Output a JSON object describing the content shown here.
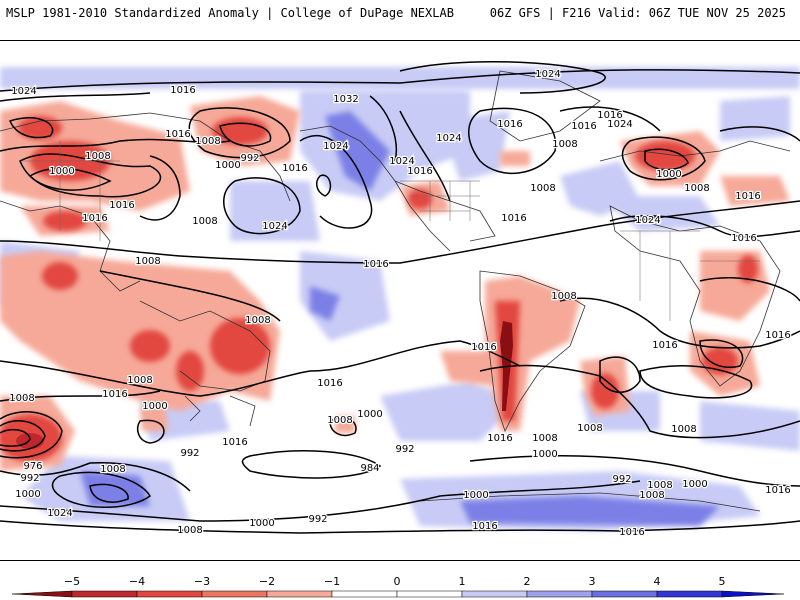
{
  "header": {
    "title_left": "MSLP 1981-2010 Standardized Anomaly | College of DuPage NEXLAB",
    "title_right": "06Z GFS | F216 Valid: 06Z TUE NOV 25 2025"
  },
  "map": {
    "projection": "global cylindrical",
    "field": "MSLP standardized anomaly",
    "contour_units": "hPa",
    "contour_labels": [
      {
        "id": "l1",
        "text": "1024"
      },
      {
        "id": "l2",
        "text": "1016"
      },
      {
        "id": "l3",
        "text": "1016"
      },
      {
        "id": "l4",
        "text": "1008"
      },
      {
        "id": "l5",
        "text": "992"
      },
      {
        "id": "l6",
        "text": "1000"
      },
      {
        "id": "l7",
        "text": "1008"
      },
      {
        "id": "l8",
        "text": "1000"
      },
      {
        "id": "l9",
        "text": "1016"
      },
      {
        "id": "l10",
        "text": "1016"
      },
      {
        "id": "l11",
        "text": "1016"
      },
      {
        "id": "l12",
        "text": "1008"
      },
      {
        "id": "l13",
        "text": "1024"
      },
      {
        "id": "l14",
        "text": "1008"
      },
      {
        "id": "l15",
        "text": "1032"
      },
      {
        "id": "l16",
        "text": "1024"
      },
      {
        "id": "l17",
        "text": "1024"
      },
      {
        "id": "l18",
        "text": "1016"
      },
      {
        "id": "l19",
        "text": "1024"
      },
      {
        "id": "l20",
        "text": "1016"
      },
      {
        "id": "l21",
        "text": "1008"
      },
      {
        "id": "l22",
        "text": "1016"
      },
      {
        "id": "l23",
        "text": "1016"
      },
      {
        "id": "l24",
        "text": "1024"
      },
      {
        "id": "l25",
        "text": "1008"
      },
      {
        "id": "l26",
        "text": "1016"
      },
      {
        "id": "l27",
        "text": "1024"
      },
      {
        "id": "l28",
        "text": "1016"
      },
      {
        "id": "l29",
        "text": "1000"
      },
      {
        "id": "l30",
        "text": "1008"
      },
      {
        "id": "l31",
        "text": "1016"
      },
      {
        "id": "l32",
        "text": "1024"
      },
      {
        "id": "l33",
        "text": "1016"
      },
      {
        "id": "l34",
        "text": "1008"
      },
      {
        "id": "l35",
        "text": "1016"
      },
      {
        "id": "l36",
        "text": "1016"
      },
      {
        "id": "l37",
        "text": "1008"
      },
      {
        "id": "l38",
        "text": "1008"
      },
      {
        "id": "l39",
        "text": "1016"
      },
      {
        "id": "l40",
        "text": "1016"
      },
      {
        "id": "l41",
        "text": "1016"
      },
      {
        "id": "l42",
        "text": "1008"
      },
      {
        "id": "l43",
        "text": "1000"
      },
      {
        "id": "l44",
        "text": "1016"
      },
      {
        "id": "l45",
        "text": "1000"
      },
      {
        "id": "l46",
        "text": "1008"
      },
      {
        "id": "l47",
        "text": "992"
      },
      {
        "id": "l48",
        "text": "984"
      },
      {
        "id": "l49",
        "text": "992"
      },
      {
        "id": "l50",
        "text": "976"
      },
      {
        "id": "l51",
        "text": "992"
      },
      {
        "id": "l52",
        "text": "1000"
      },
      {
        "id": "l53",
        "text": "1008"
      },
      {
        "id": "l54",
        "text": "1008"
      },
      {
        "id": "l55",
        "text": "1016"
      },
      {
        "id": "l56",
        "text": "1024"
      },
      {
        "id": "l57",
        "text": "1008"
      },
      {
        "id": "l58",
        "text": "1000"
      },
      {
        "id": "l59",
        "text": "992"
      },
      {
        "id": "l60",
        "text": "1000"
      },
      {
        "id": "l61",
        "text": "1016"
      },
      {
        "id": "l62",
        "text": "992"
      },
      {
        "id": "l63",
        "text": "1000"
      },
      {
        "id": "l64",
        "text": "1008"
      },
      {
        "id": "l65",
        "text": "1016"
      },
      {
        "id": "l66",
        "text": "1016"
      },
      {
        "id": "l67",
        "text": "1008"
      },
      {
        "id": "l68",
        "text": "1000"
      },
      {
        "id": "l69",
        "text": "1008"
      },
      {
        "id": "l70",
        "text": "1008"
      }
    ]
  },
  "colorbar": {
    "ticks": [
      -5,
      -4,
      -3,
      -2,
      -1,
      0,
      1,
      2,
      3,
      4,
      5
    ],
    "tick_labels": [
      "−5",
      "−4",
      "−3",
      "−2",
      "−1",
      "0",
      "1",
      "2",
      "3",
      "4",
      "5"
    ],
    "bins": [
      {
        "from": -5,
        "to": -4,
        "color": "#c0272d"
      },
      {
        "from": -4,
        "to": -3,
        "color": "#e2463f"
      },
      {
        "from": -3,
        "to": -2,
        "color": "#ee7462"
      },
      {
        "from": -2,
        "to": -1,
        "color": "#f6a998"
      },
      {
        "from": -1,
        "to": 0,
        "color": "#ffffff"
      },
      {
        "from": 0,
        "to": 1,
        "color": "#ffffff"
      },
      {
        "from": 1,
        "to": 2,
        "color": "#c8cbf5"
      },
      {
        "from": 2,
        "to": 3,
        "color": "#9da2ec"
      },
      {
        "from": 3,
        "to": 4,
        "color": "#6a6fe3"
      },
      {
        "from": 4,
        "to": 5,
        "color": "#3236d6"
      }
    ],
    "low_end_color": "#8a0f14",
    "high_end_color": "#0a10c8"
  },
  "colors": {
    "negative_strong": "#c0272d",
    "negative_light": "#f6a998",
    "positive_light": "#c8cbf5",
    "positive_strong": "#3236d6"
  }
}
